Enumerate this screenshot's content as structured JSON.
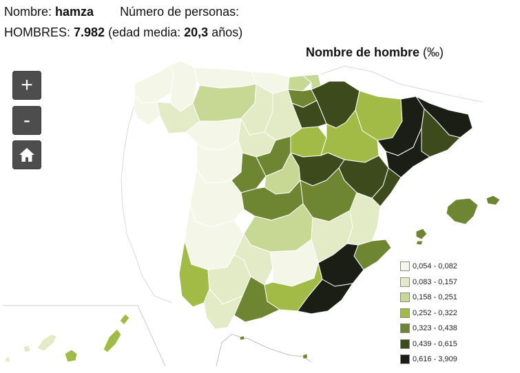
{
  "info": {
    "name_label": "Nombre: ",
    "name_value": "hamza",
    "count_label": "Número de personas:",
    "gender_label": "HOMBRES: ",
    "count_value": "7.982",
    "age_open": " (edad media: ",
    "age_value": "20,3",
    "age_close": " años)"
  },
  "map": {
    "title": "Nombre de hombre ",
    "unit": "(‰)"
  },
  "controls": {
    "zoom_in": "+",
    "zoom_out": "-"
  },
  "legend": {
    "items": [
      {
        "label": "0,054 - 0,082",
        "color": "#f4f6e7"
      },
      {
        "label": "0,083 - 0,157",
        "color": "#e2ebc6"
      },
      {
        "label": "0,158 - 0,251",
        "color": "#c7d794"
      },
      {
        "label": "0,252 - 0,322",
        "color": "#a2bb47"
      },
      {
        "label": "0,323 - 0,438",
        "color": "#6e8531"
      },
      {
        "label": "0,439 - 0,615",
        "color": "#3c4a1c"
      },
      {
        "label": "0,616 - 3,909",
        "color": "#1a1e14"
      }
    ]
  }
}
